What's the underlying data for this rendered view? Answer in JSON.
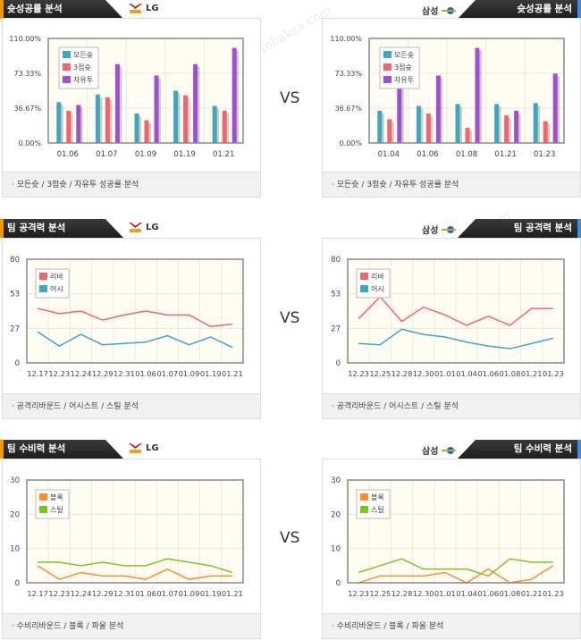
{
  "vs_label": "VS",
  "watermark": [
    "토토박사",
    "totobaksa.com"
  ],
  "teams": {
    "left": "LG",
    "right": "삼성"
  },
  "colors": {
    "teal": "#3ba8bf",
    "red": "#f2646e",
    "purple": "#a04fd0",
    "orange": "#ff8c2f",
    "green": "#7cc520",
    "left_accent": "#f39800",
    "right_accent": "#3a8ee6"
  },
  "sections": [
    {
      "title": "슛성공률 분석",
      "footer": "· 모든슛 / 3점슛 / 자유투 성공률 분석"
    },
    {
      "title": "팀 공격력 분석",
      "footer": "· 공격리바운드 / 어시스트 / 스틸 분석"
    },
    {
      "title": "팀 수비력 분석",
      "footer": "· 수비리바운드 / 블록 / 파울 분석"
    }
  ],
  "chart_data": [
    {
      "id": "shoot-left",
      "type": "bar",
      "team": "LG",
      "categories": [
        "01.06",
        "01.07",
        "01.09",
        "01.19",
        "01.21"
      ],
      "yticks": [
        "0.00%",
        "36.67%",
        "73.33%",
        "110.00%"
      ],
      "ylim": [
        0,
        110
      ],
      "series": [
        {
          "name": "모든슛",
          "color": "#3ba8bf",
          "values": [
            43,
            51,
            31,
            55,
            39
          ]
        },
        {
          "name": "3점슛",
          "color": "#f2646e",
          "values": [
            34,
            48,
            24,
            50,
            34
          ]
        },
        {
          "name": "자유투",
          "color": "#a04fd0",
          "values": [
            40,
            83,
            71,
            83,
            100
          ]
        }
      ]
    },
    {
      "id": "shoot-right",
      "type": "bar",
      "team": "삼성",
      "categories": [
        "01.04",
        "01.06",
        "01.08",
        "01.21",
        "01.23"
      ],
      "yticks": [
        "0.00%",
        "36.67%",
        "73.33%",
        "110.00%"
      ],
      "ylim": [
        0,
        110
      ],
      "series": [
        {
          "name": "모든슛",
          "color": "#3ba8bf",
          "values": [
            34,
            39,
            41,
            41,
            42
          ]
        },
        {
          "name": "3점슛",
          "color": "#f2646e",
          "values": [
            25,
            31,
            16,
            29,
            23
          ]
        },
        {
          "name": "자유투",
          "color": "#a04fd0",
          "values": [
            67,
            71,
            100,
            34,
            73
          ]
        }
      ]
    },
    {
      "id": "attack-left",
      "type": "line",
      "team": "LG",
      "categories": [
        "12.17",
        "12.23",
        "12.24",
        "12.29",
        "12.31",
        "01.06",
        "01.07",
        "01.09",
        "01.19",
        "01.21"
      ],
      "yticks": [
        "0",
        "27",
        "53",
        "80"
      ],
      "ylim": [
        0,
        80
      ],
      "series": [
        {
          "name": "리바",
          "color": "#f2646e",
          "values": [
            42,
            38,
            40,
            33,
            37,
            40,
            37,
            37,
            28,
            30
          ]
        },
        {
          "name": "어시",
          "color": "#3ba8bf",
          "values": [
            24,
            13,
            22,
            14,
            15,
            16,
            21,
            14,
            20,
            12
          ]
        }
      ]
    },
    {
      "id": "attack-right",
      "type": "line",
      "team": "삼성",
      "categories": [
        "12.23",
        "12.25",
        "12.28",
        "12.30",
        "01.01",
        "01.04",
        "01.06",
        "01.08",
        "01.21",
        "01.23"
      ],
      "yticks": [
        "0",
        "27",
        "53",
        "80"
      ],
      "ylim": [
        0,
        80
      ],
      "series": [
        {
          "name": "리바",
          "color": "#f2646e",
          "values": [
            34,
            51,
            32,
            43,
            37,
            29,
            36,
            29,
            42,
            42
          ]
        },
        {
          "name": "어시",
          "color": "#3ba8bf",
          "values": [
            15,
            14,
            26,
            22,
            20,
            16,
            13,
            11,
            15,
            19
          ]
        }
      ]
    },
    {
      "id": "defense-left",
      "type": "line",
      "team": "LG",
      "categories": [
        "12.17",
        "12.23",
        "12.24",
        "12.29",
        "12.31",
        "01.06",
        "01.07",
        "01.09",
        "01.19",
        "01.21"
      ],
      "yticks": [
        "0",
        "10",
        "20",
        "30"
      ],
      "ylim": [
        0,
        30
      ],
      "series": [
        {
          "name": "블록",
          "color": "#ff8c2f",
          "values": [
            5,
            1,
            3,
            2,
            2,
            1,
            4,
            1,
            2,
            2
          ]
        },
        {
          "name": "스틸",
          "color": "#7cc520",
          "values": [
            6,
            6,
            5,
            6,
            5,
            5,
            7,
            6,
            5,
            3
          ]
        }
      ]
    },
    {
      "id": "defense-right",
      "type": "line",
      "team": "삼성",
      "categories": [
        "12.23",
        "12.25",
        "12.28",
        "12.30",
        "01.01",
        "01.04",
        "01.06",
        "01.08",
        "01.21",
        "01.23"
      ],
      "yticks": [
        "0",
        "10",
        "20",
        "30"
      ],
      "ylim": [
        0,
        30
      ],
      "series": [
        {
          "name": "블록",
          "color": "#ff8c2f",
          "values": [
            0,
            2,
            2,
            2,
            3,
            0,
            4,
            0,
            1,
            5
          ]
        },
        {
          "name": "스틸",
          "color": "#7cc520",
          "values": [
            3,
            5,
            7,
            4,
            4,
            4,
            2,
            7,
            6,
            6
          ]
        }
      ]
    }
  ]
}
